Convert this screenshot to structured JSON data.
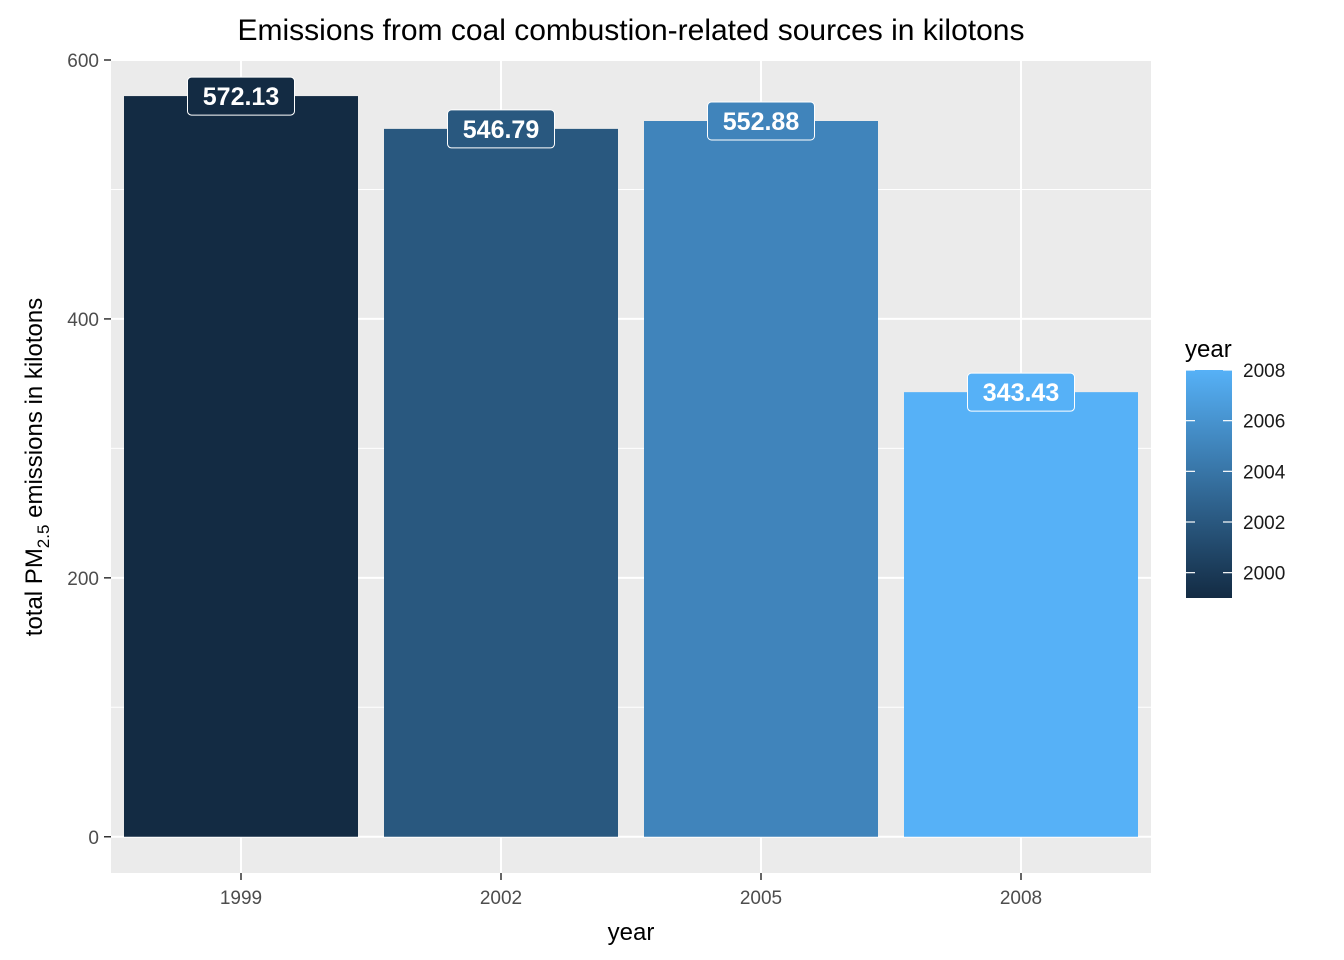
{
  "chart_data": {
    "type": "bar",
    "title": "Emissions from coal combustion-related sources in kilotons",
    "xlabel": "year",
    "ylabel_prefix": "total PM",
    "ylabel_subscript": "2.5",
    "ylabel_suffix": " emissions in kilotons",
    "categories": [
      "1999",
      "2002",
      "2005",
      "2008"
    ],
    "values": [
      572.13,
      546.79,
      552.88,
      343.43
    ],
    "value_labels": [
      "572.13",
      "546.79",
      "552.88",
      "343.43"
    ],
    "year_values": [
      1999,
      2002,
      2005,
      2008
    ],
    "ylim": [
      -28,
      600
    ],
    "yticks": [
      0,
      200,
      400,
      600
    ],
    "ytick_labels": [
      "0",
      "200",
      "400",
      "600"
    ],
    "grid": true,
    "legend": {
      "title": "year",
      "placement": "right",
      "range": [
        1999,
        2008
      ],
      "ticks": [
        2000,
        2002,
        2004,
        2006,
        2008
      ],
      "tick_labels": [
        "2000",
        "2002",
        "2004",
        "2006",
        "2008"
      ],
      "color_low": "#132B43",
      "color_high": "#56B1F7"
    },
    "colors": {
      "panel_background": "#EBEBEB",
      "grid_major": "#FFFFFF",
      "tick_color": "#333333"
    }
  }
}
